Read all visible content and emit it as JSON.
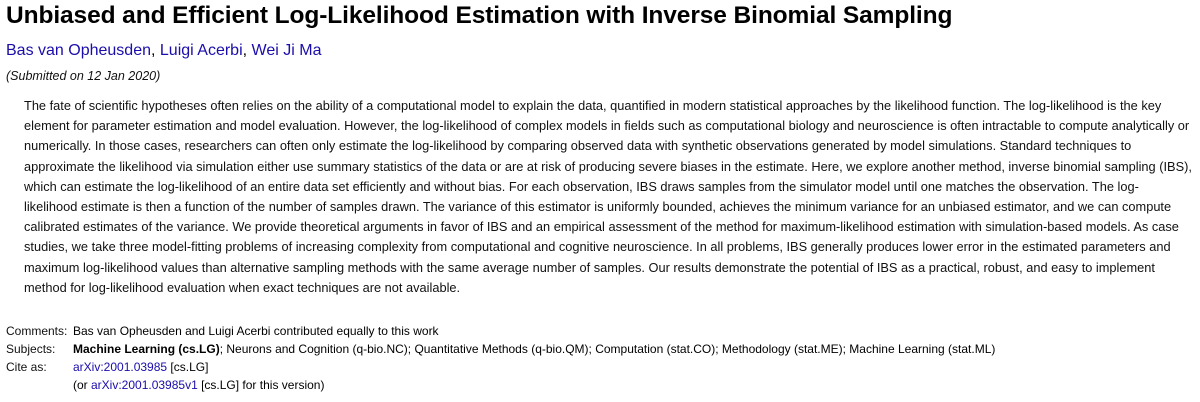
{
  "title": "Unbiased and Efficient Log-Likelihood Estimation with Inverse Binomial Sampling",
  "authors": [
    "Bas van Opheusden",
    "Luigi Acerbi",
    "Wei Ji Ma"
  ],
  "author_separator": ",",
  "submitted": "(Submitted on 12 Jan 2020)",
  "abstract": "The fate of scientific hypotheses often relies on the ability of a computational model to explain the data, quantified in modern statistical approaches by the likelihood function. The log-likelihood is the key element for parameter estimation and model evaluation. However, the log-likelihood of complex models in fields such as computational biology and neuroscience is often intractable to compute analytically or numerically. In those cases, researchers can often only estimate the log-likelihood by comparing observed data with synthetic observations generated by model simulations. Standard techniques to approximate the likelihood via simulation either use summary statistics of the data or are at risk of producing severe biases in the estimate. Here, we explore another method, inverse binomial sampling (IBS), which can estimate the log-likelihood of an entire data set efficiently and without bias. For each observation, IBS draws samples from the simulator model until one matches the observation. The log-likelihood estimate is then a function of the number of samples drawn. The variance of this estimator is uniformly bounded, achieves the minimum variance for an unbiased estimator, and we can compute calibrated estimates of the variance. We provide theoretical arguments in favor of IBS and an empirical assessment of the method for maximum-likelihood estimation with simulation-based models. As case studies, we take three model-fitting problems of increasing complexity from computational and cognitive neuroscience. In all problems, IBS generally produces lower error in the estimated parameters and maximum log-likelihood values than alternative sampling methods with the same average number of samples. Our results demonstrate the potential of IBS as a practical, robust, and easy to implement method for log-likelihood evaluation when exact techniques are not available.",
  "meta": {
    "comments_label": "Comments:",
    "comments": "Bas van Opheusden and Luigi Acerbi contributed equally to this work",
    "subjects_label": "Subjects:",
    "subjects_primary": "Machine Learning (cs.LG)",
    "subjects_rest": "; Neurons and Cognition (q-bio.NC); Quantitative Methods (q-bio.QM); Computation (stat.CO); Methodology (stat.ME); Machine Learning (stat.ML)",
    "cite_label": "Cite as:",
    "cite_link": "arXiv:2001.03985",
    "cite_suffix": " [cs.LG]",
    "version_prefix": "(or ",
    "version_link": "arXiv:2001.03985v1",
    "version_suffix": " [cs.LG] for this version)"
  },
  "colors": {
    "link": "#1a0dab",
    "text": "#000000"
  }
}
